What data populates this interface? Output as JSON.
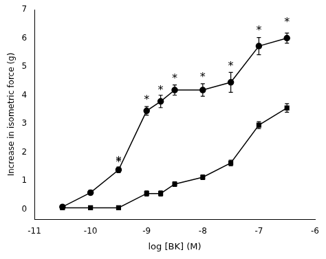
{
  "chart_data": {
    "type": "line",
    "xlabel": "log [BK] (M)",
    "ylabel": "Increase in isometric force (g)",
    "color": "#000000",
    "series": [
      {
        "x": [
          -10.5,
          -10.0,
          -9.5,
          -9.0,
          -8.75,
          -8.5,
          -8.0,
          -7.5,
          -7.0,
          -6.5
        ],
        "values": [
          0.08,
          0.58,
          1.38,
          3.45,
          3.78,
          4.18,
          4.18,
          4.45,
          5.72,
          6.0
        ],
        "errors": [
          0.05,
          0.08,
          0.1,
          0.15,
          0.22,
          0.18,
          0.22,
          0.35,
          0.3,
          0.18
        ],
        "marker": "circle"
      },
      {
        "x": [
          -10.5,
          -10.0,
          -9.5,
          -9.0,
          -8.75,
          -8.5,
          -8.0,
          -7.5,
          -7.0,
          -6.5
        ],
        "values": [
          0.05,
          0.05,
          0.05,
          0.55,
          0.55,
          0.88,
          1.12,
          1.62,
          2.95,
          3.55
        ],
        "errors": [
          0.04,
          0.04,
          0.04,
          0.09,
          0.09,
          0.08,
          0.08,
          0.1,
          0.12,
          0.15
        ],
        "marker": "square"
      }
    ],
    "annotations": [
      {
        "text": "*",
        "x": -9.5,
        "y": 1.62
      },
      {
        "text": "*",
        "x": -9.0,
        "y": 3.78
      },
      {
        "text": "*",
        "x": -8.75,
        "y": 4.12
      },
      {
        "text": "*",
        "x": -8.5,
        "y": 4.52
      },
      {
        "text": "*",
        "x": -8.0,
        "y": 4.56
      },
      {
        "text": "*",
        "x": -7.5,
        "y": 4.95
      },
      {
        "text": "*",
        "x": -7.0,
        "y": 6.2
      },
      {
        "text": "*",
        "x": -6.5,
        "y": 6.5
      },
      {
        "text": "*",
        "x": -9.5,
        "y": 1.58
      }
    ],
    "xlim": [
      -11.0,
      -6.0
    ],
    "ylim": [
      -0.35,
      7.0
    ],
    "xticks": [
      -11,
      -10,
      -9,
      -8,
      -7,
      -6
    ],
    "yticks": [
      0,
      1,
      2,
      3,
      4,
      5,
      6,
      7
    ],
    "grid": false
  }
}
